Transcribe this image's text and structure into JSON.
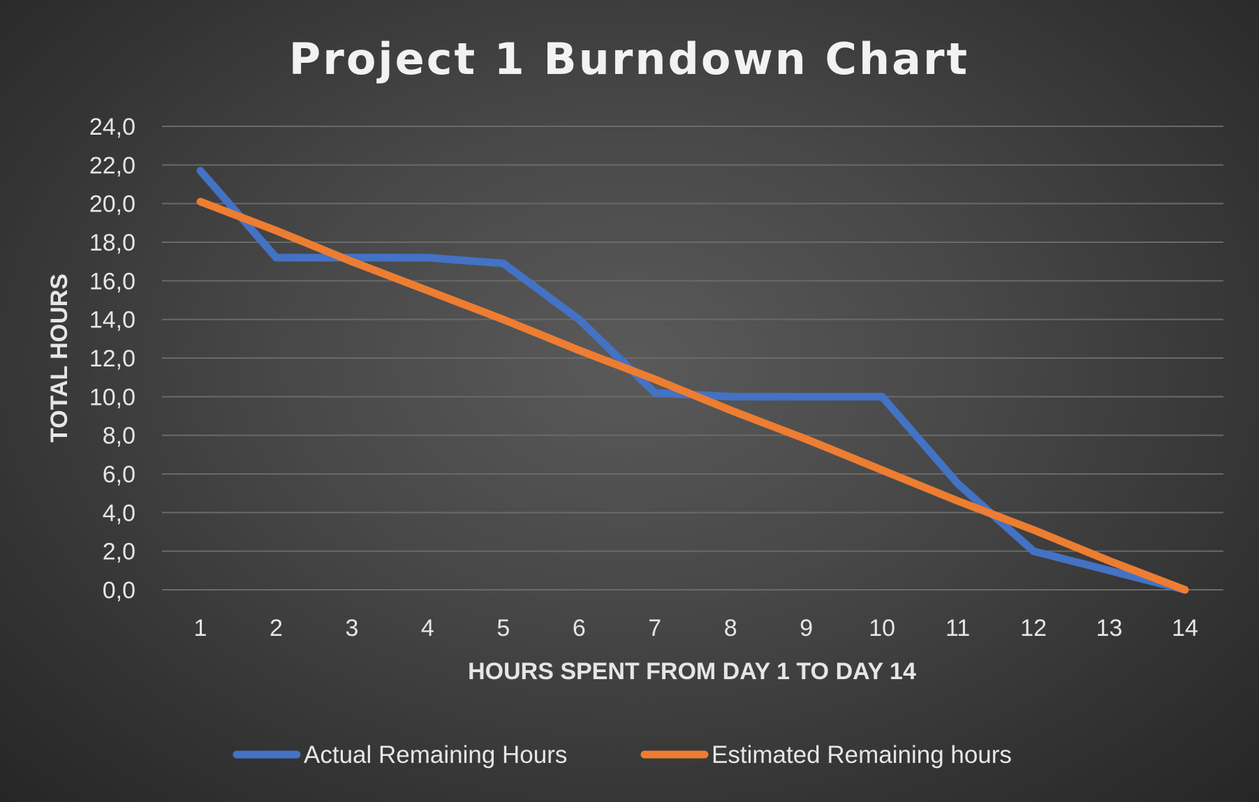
{
  "colors": {
    "actual": "#4472C4",
    "estimated": "#ED7D31",
    "text": "#E6E6E6",
    "title": "#F2F2F2",
    "grid": "#6A6A6A"
  },
  "chart_data": {
    "type": "line",
    "title": "Project 1 Burndown Chart",
    "xlabel": "HOURS SPENT FROM DAY 1 TO DAY 14",
    "ylabel": "TOTAL HOURS",
    "categories": [
      "1",
      "2",
      "3",
      "4",
      "5",
      "6",
      "7",
      "8",
      "9",
      "10",
      "11",
      "12",
      "13",
      "14"
    ],
    "y_ticks": [
      "0,0",
      "2,0",
      "4,0",
      "6,0",
      "8,0",
      "10,0",
      "12,0",
      "14,0",
      "16,0",
      "18,0",
      "20,0",
      "22,0",
      "24,0"
    ],
    "ylim": [
      0,
      24
    ],
    "grid": true,
    "legend_position": "bottom",
    "series": [
      {
        "name": "Actual Remaining Hours",
        "color_key": "actual",
        "values": [
          21.7,
          17.2,
          17.2,
          17.2,
          16.9,
          14.0,
          10.2,
          10.0,
          10.0,
          10.0,
          5.5,
          2.0,
          1.0,
          0.0
        ]
      },
      {
        "name": "Estimated Remaining hours",
        "color_key": "estimated",
        "values": [
          20.1,
          18.6,
          17.0,
          15.5,
          14.0,
          12.4,
          10.9,
          9.3,
          7.8,
          6.2,
          4.6,
          3.1,
          1.5,
          0.0
        ]
      }
    ]
  }
}
